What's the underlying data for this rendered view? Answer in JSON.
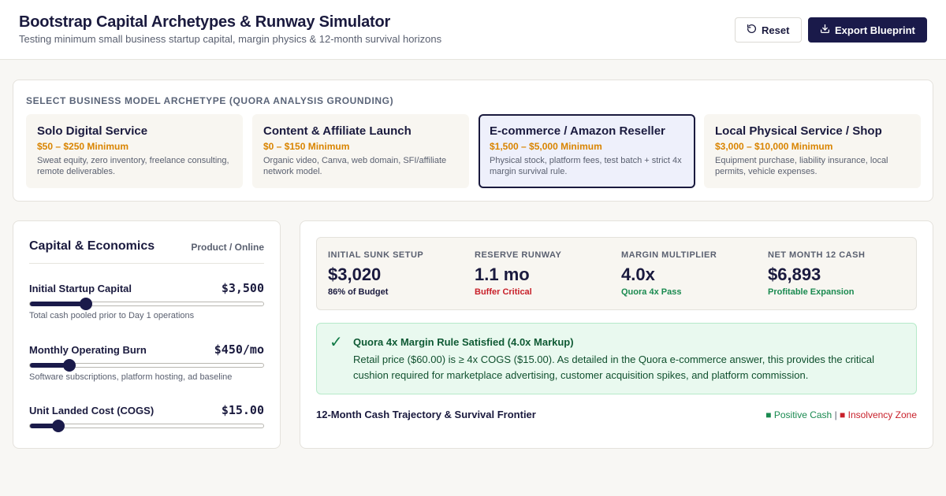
{
  "header": {
    "title": "Bootstrap Capital Archetypes & Runway Simulator",
    "subtitle": "Testing minimum small business startup capital, margin physics & 12-month survival horizons",
    "reset_label": "Reset",
    "export_label": "Export Blueprint",
    "reset_icon": "rotate-ccw-icon",
    "export_icon": "download-icon"
  },
  "archetypes": {
    "section_label": "SELECT BUSINESS MODEL ARCHETYPE (QUORA ANALYSIS GROUNDING)",
    "selected_index": 2,
    "items": [
      {
        "title": "Solo Digital Service",
        "price": "$50 – $250 Minimum",
        "desc": "Sweat equity, zero inventory, freelance consulting, remote deliverables."
      },
      {
        "title": "Content & Affiliate Launch",
        "price": "$0 – $150 Minimum",
        "desc": "Organic video, Canva, web domain, SFI/affiliate network model."
      },
      {
        "title": "E-commerce / Amazon Reseller",
        "price": "$1,500 – $5,000 Minimum",
        "desc": "Physical stock, platform fees, test batch + strict 4x margin survival rule."
      },
      {
        "title": "Local Physical Service / Shop",
        "price": "$3,000 – $10,000 Minimum",
        "desc": "Equipment purchase, liability insurance, local permits, vehicle expenses."
      }
    ]
  },
  "economics": {
    "title": "Capital & Economics",
    "tag": "Product / Online",
    "fields": [
      {
        "label": "Initial Startup Capital",
        "value": "$3,500",
        "help": "Total cash pooled prior to Day 1 operations",
        "fraction": 0.24
      },
      {
        "label": "Monthly Operating Burn",
        "value": "$450/mo",
        "help": "Software subscriptions, platform hosting, ad baseline",
        "fraction": 0.17
      },
      {
        "label": "Unit Landed Cost (COGS)",
        "value": "$15.00",
        "help": "",
        "fraction": 0.12
      }
    ]
  },
  "kpis": [
    {
      "label": "INITIAL SUNK SETUP",
      "value": "$3,020",
      "sub": "86% of Budget",
      "sub_color": "#1a1a3e"
    },
    {
      "label": "RESERVE RUNWAY",
      "value": "1.1 mo",
      "sub": "Buffer Critical",
      "sub_color": "#c8202a"
    },
    {
      "label": "MARGIN MULTIPLIER",
      "value": "4.0x",
      "sub": "Quora 4x Pass",
      "sub_color": "#1a8a50"
    },
    {
      "label": "NET MONTH 12 CASH",
      "value": "$6,893",
      "sub": "Profitable Expansion",
      "sub_color": "#1a8a50"
    }
  ],
  "rule": {
    "icon": "check-icon",
    "title": "Quora 4x Margin Rule Satisfied (4.0x Markup)",
    "text": "Retail price ($60.00) is ≥ 4x COGS ($15.00). As detailed in the Quora e-commerce answer, this provides the critical cushion required for marketplace advertising, customer acquisition spikes, and platform commission."
  },
  "trajectory": {
    "title": "12-Month Cash Trajectory & Survival Frontier",
    "legend_positive": "■ Positive Cash",
    "legend_separator": "|",
    "legend_negative": "■ Insolvency Zone"
  }
}
